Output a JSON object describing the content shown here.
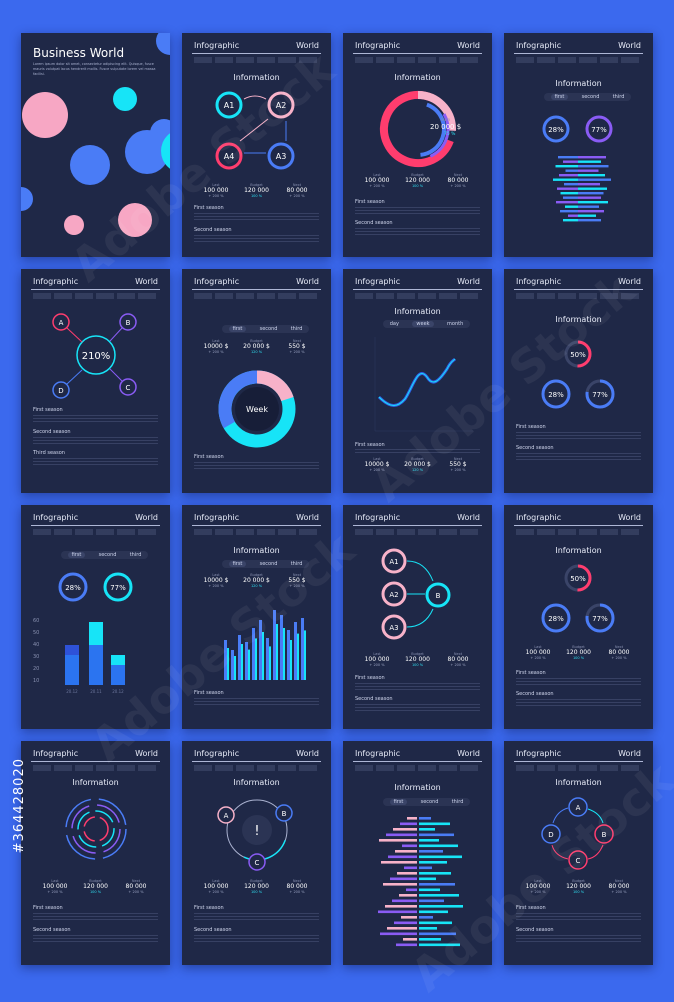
{
  "colors": {
    "page_bg": "#3b69ee",
    "card_bg": "#1f2847",
    "pink": "#ff3d6e",
    "lightpink": "#f7b2c9",
    "cyan": "#17e4f7",
    "blue": "#4a7cf6",
    "purple": "#8a5cf5"
  },
  "common": {
    "header_left": "Infographic",
    "header_right": "World",
    "info_title": "Information",
    "first_season": "First season",
    "second_season": "Second season",
    "third_season": "Third season",
    "stats": [
      {
        "label": "Last",
        "value": "100 000",
        "delta": "+ 200 %"
      },
      {
        "label": "Budget",
        "value": "120 000",
        "delta": "100 %"
      },
      {
        "label": "Next",
        "value": "80 000",
        "delta": "+ 200 %"
      }
    ],
    "stats2": [
      {
        "label": "Last",
        "value": "10000 $",
        "delta": "+ 200 %"
      },
      {
        "label": "Budget",
        "value": "20 000 $",
        "delta": "120 %"
      },
      {
        "label": "Next",
        "value": "550 $",
        "delta": "+ 200 %"
      }
    ],
    "tabs": {
      "first": "first",
      "second": "second",
      "third": "third"
    },
    "tabs2": {
      "day": "day",
      "week": "week",
      "month": "month"
    }
  },
  "cover": {
    "title": "Business World",
    "lines": "Lorem ipsum dolor sit amet, consectetur adipiscing elit. Quisque, fusce mauris volutpat lacus hendrerit mollis. Fusce vulputate lorem vel massa facilisi."
  },
  "c2": {
    "nodes": [
      "A1",
      "A2",
      "A3",
      "A4"
    ]
  },
  "c3": {
    "sum_label": "Sum",
    "sum_value": "20 000 $",
    "sum_pct": "75 %"
  },
  "c4": {
    "gauges": [
      "28%",
      "77%"
    ]
  },
  "c5": {
    "nodes": [
      "A",
      "B",
      "C",
      "D"
    ],
    "center": "210%"
  },
  "c6": {
    "center": "Week"
  },
  "c8": {
    "gauges": [
      "50%",
      "28%",
      "77%"
    ]
  },
  "c9": {
    "gauges": [
      "28%",
      "77%"
    ],
    "yticks": [
      "60",
      "50",
      "40",
      "30",
      "20",
      "10"
    ],
    "xticks": [
      "20.12",
      "20.11",
      "20.12"
    ]
  },
  "c11": {
    "nodes": [
      "A1",
      "A2",
      "A3",
      "B"
    ]
  },
  "c12": {
    "gauges": [
      "50%",
      "28%",
      "77%"
    ]
  },
  "c14": {
    "nodes": [
      "A",
      "B",
      "C"
    ],
    "center": "!"
  },
  "c16": {
    "nodes": [
      "A",
      "B",
      "C",
      "D"
    ]
  },
  "watermark": "Adobe Stock",
  "stock_id": "#364428020"
}
